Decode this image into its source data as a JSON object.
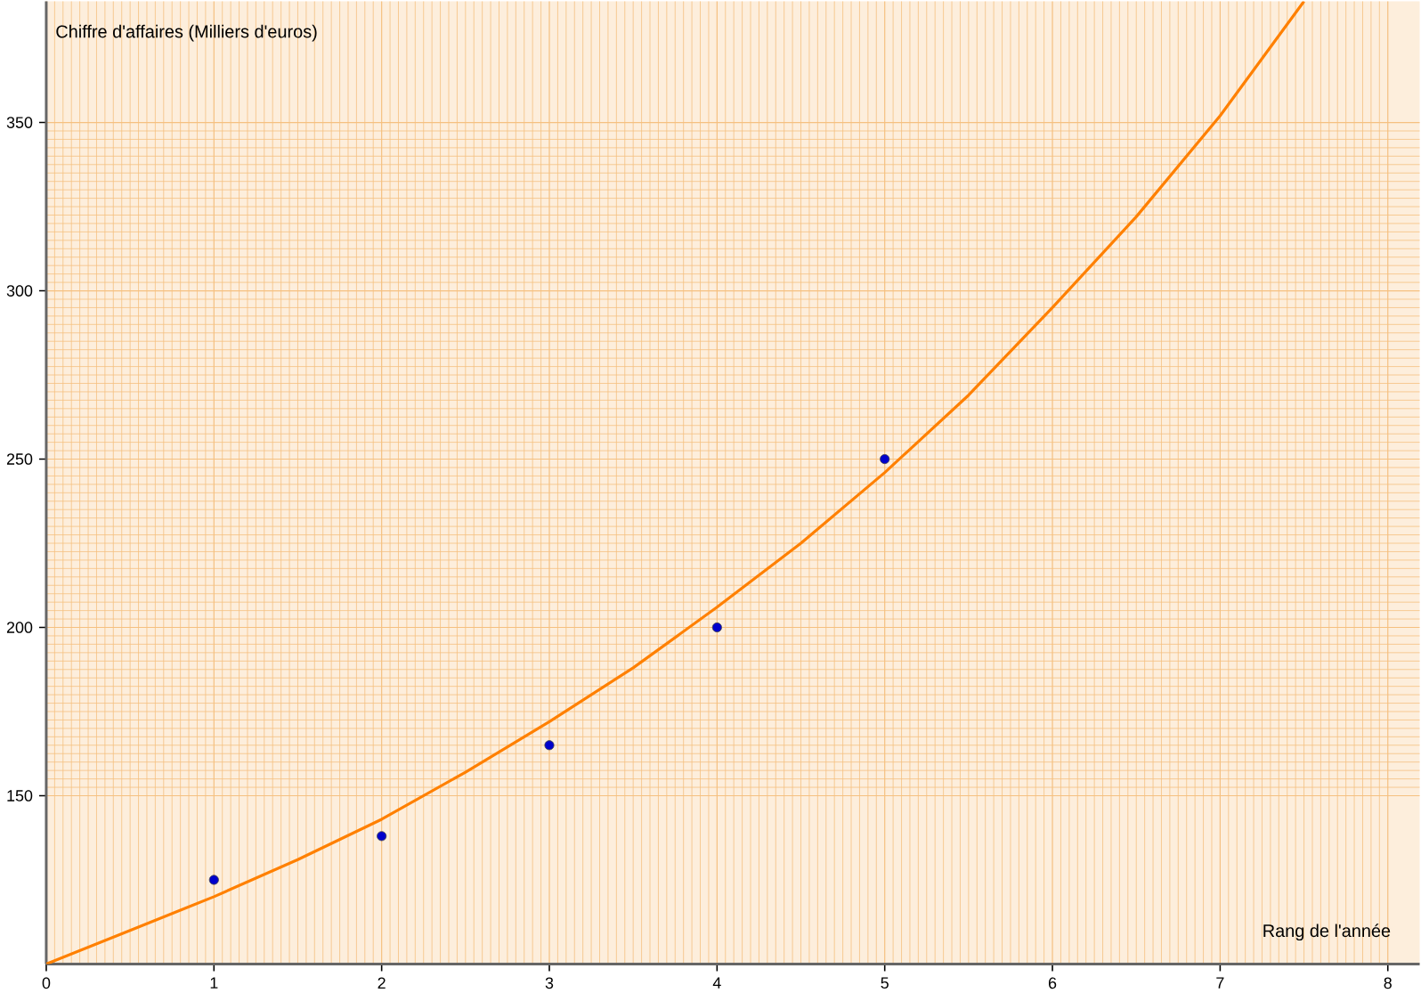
{
  "chart_data": {
    "type": "scatter",
    "xlabel": "Rang de l'année",
    "ylabel": "Chiffre d'affaires (Milliers d'euros)",
    "xlim": [
      0,
      8.19
    ],
    "ylim": [
      100,
      386
    ],
    "xticks": [
      0,
      1,
      2,
      3,
      4,
      5,
      6,
      7,
      8
    ],
    "yticks": [
      150,
      200,
      250,
      300,
      350
    ],
    "grid": true,
    "series": [
      {
        "color": "#0000cc",
        "marker": "circle",
        "x": [
          1,
          2,
          3,
          4,
          5
        ],
        "values": [
          125,
          138,
          165,
          200,
          250
        ]
      },
      {
        "type": "line",
        "color": "#ff8000",
        "line_style": "solid",
        "x": [
          0,
          0.5,
          1,
          1.5,
          2,
          2.5,
          3,
          3.5,
          4,
          4.5,
          5,
          5.5,
          6,
          6.5,
          7,
          7.5
        ],
        "values": [
          100,
          110,
          120,
          131,
          143,
          157,
          172,
          188,
          206,
          225,
          246,
          269,
          295,
          322,
          352,
          386
        ]
      }
    ]
  }
}
